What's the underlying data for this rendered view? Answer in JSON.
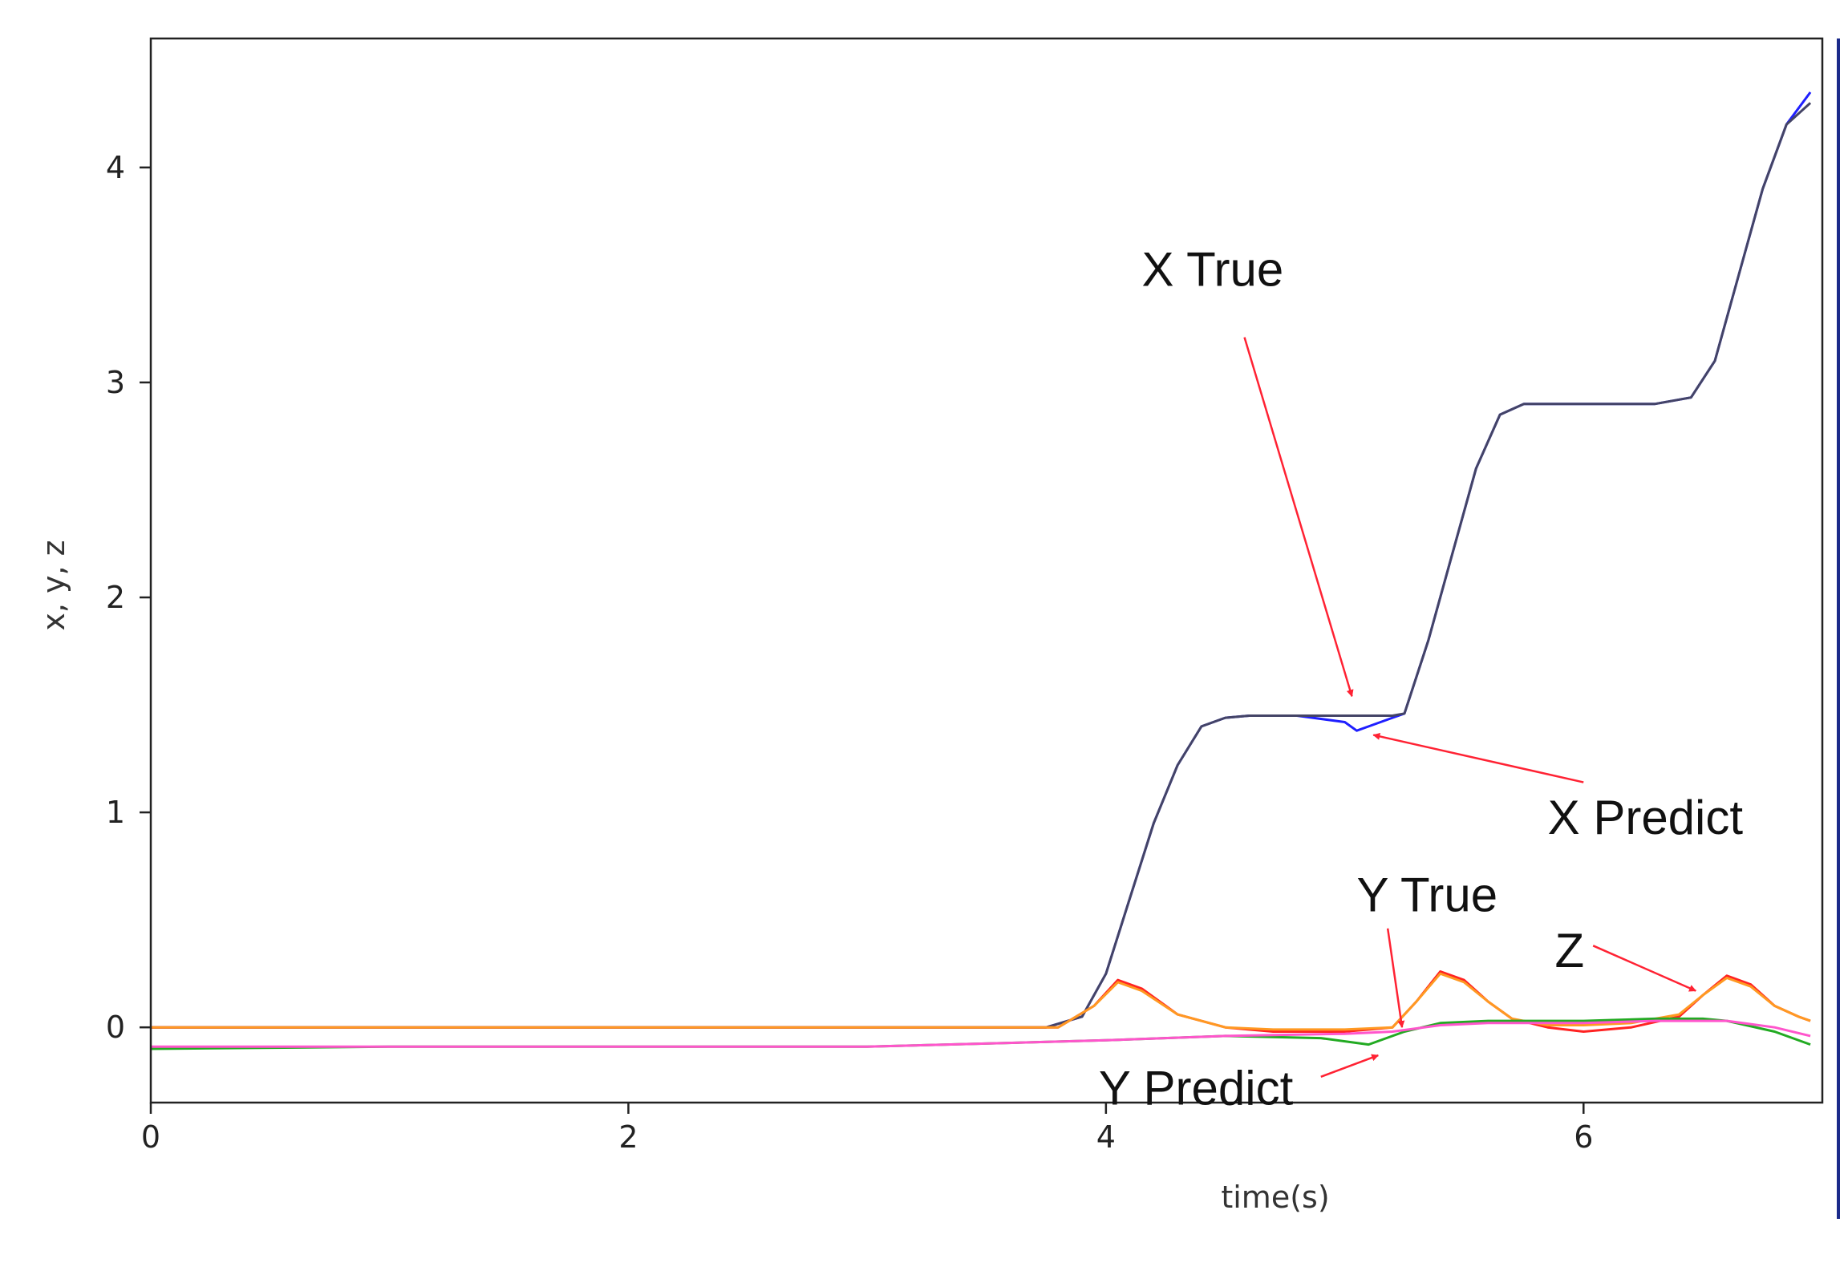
{
  "chart_data": {
    "type": "line",
    "title": "",
    "xlabel": "time(s)",
    "ylabel": "x, y, z",
    "xlim": [
      0,
      7.0
    ],
    "ylim": [
      -0.35,
      4.6
    ],
    "xticks": [
      0,
      2,
      4,
      6
    ],
    "yticks": [
      0,
      1,
      2,
      3,
      4
    ],
    "grid": false,
    "legend": "none",
    "series": [
      {
        "color": "#1f1fff",
        "x": [
          0,
          3.75,
          3.9,
          4.0,
          4.1,
          4.2,
          4.3,
          4.4,
          4.5,
          4.6,
          4.8,
          5.0,
          5.05,
          5.1,
          5.2,
          5.25,
          5.35,
          5.45,
          5.55,
          5.65,
          5.75,
          5.9,
          6.1,
          6.3,
          6.45,
          6.55,
          6.65,
          6.75,
          6.85,
          6.95
        ],
        "y": [
          0.0,
          0.0,
          0.05,
          0.25,
          0.6,
          0.95,
          1.22,
          1.4,
          1.44,
          1.45,
          1.45,
          1.42,
          1.38,
          1.4,
          1.44,
          1.46,
          1.8,
          2.2,
          2.6,
          2.85,
          2.9,
          2.9,
          2.9,
          2.9,
          2.93,
          3.1,
          3.5,
          3.9,
          4.2,
          4.35
        ]
      },
      {
        "color": "#444466",
        "x": [
          0,
          3.75,
          3.9,
          4.0,
          4.1,
          4.2,
          4.3,
          4.4,
          4.5,
          4.6,
          4.8,
          5.0,
          5.1,
          5.2,
          5.25,
          5.35,
          5.45,
          5.55,
          5.65,
          5.75,
          5.9,
          6.1,
          6.3,
          6.45,
          6.55,
          6.65,
          6.75,
          6.85,
          6.95
        ],
        "y": [
          0.0,
          0.0,
          0.05,
          0.25,
          0.6,
          0.95,
          1.22,
          1.4,
          1.44,
          1.45,
          1.45,
          1.45,
          1.45,
          1.45,
          1.46,
          1.8,
          2.2,
          2.6,
          2.85,
          2.9,
          2.9,
          2.9,
          2.9,
          2.93,
          3.1,
          3.5,
          3.9,
          4.2,
          4.3
        ]
      },
      {
        "color": "#ff2222",
        "x": [
          0,
          3.8,
          3.95,
          4.05,
          4.15,
          4.3,
          4.5,
          4.7,
          5.0,
          5.2,
          5.3,
          5.4,
          5.5,
          5.6,
          5.7,
          5.85,
          6.0,
          6.2,
          6.4,
          6.5,
          6.6,
          6.7,
          6.8,
          6.9,
          6.95
        ],
        "y": [
          0.0,
          0.0,
          0.1,
          0.22,
          0.18,
          0.06,
          0.0,
          -0.02,
          -0.02,
          0.0,
          0.12,
          0.26,
          0.22,
          0.12,
          0.04,
          0.0,
          -0.02,
          0.0,
          0.05,
          0.15,
          0.24,
          0.2,
          0.1,
          0.05,
          0.03
        ]
      },
      {
        "color": "#ff9922",
        "x": [
          0,
          3.8,
          3.95,
          4.05,
          4.15,
          4.3,
          4.5,
          4.7,
          5.0,
          5.2,
          5.3,
          5.4,
          5.5,
          5.6,
          5.7,
          5.85,
          6.0,
          6.2,
          6.4,
          6.5,
          6.6,
          6.7,
          6.8,
          6.9,
          6.95
        ],
        "y": [
          0.0,
          0.0,
          0.1,
          0.21,
          0.17,
          0.06,
          0.0,
          -0.01,
          -0.01,
          0.0,
          0.12,
          0.25,
          0.21,
          0.12,
          0.04,
          0.01,
          0.01,
          0.02,
          0.06,
          0.15,
          0.23,
          0.19,
          0.1,
          0.05,
          0.03
        ]
      },
      {
        "color": "#22aa22",
        "x": [
          0,
          1.0,
          2.0,
          3.0,
          4.0,
          4.5,
          4.9,
          5.1,
          5.25,
          5.4,
          5.6,
          5.8,
          6.0,
          6.3,
          6.5,
          6.6,
          6.8,
          6.95
        ],
        "y": [
          -0.1,
          -0.09,
          -0.09,
          -0.09,
          -0.06,
          -0.04,
          -0.05,
          -0.08,
          -0.02,
          0.02,
          0.03,
          0.03,
          0.03,
          0.04,
          0.04,
          0.03,
          -0.02,
          -0.08
        ]
      },
      {
        "color": "#ff55cc",
        "x": [
          0,
          1.0,
          2.0,
          3.0,
          4.0,
          4.5,
          5.0,
          5.2,
          5.4,
          5.6,
          5.8,
          6.0,
          6.3,
          6.6,
          6.8,
          6.95
        ],
        "y": [
          -0.09,
          -0.09,
          -0.09,
          -0.09,
          -0.06,
          -0.04,
          -0.03,
          -0.02,
          0.01,
          0.02,
          0.02,
          0.02,
          0.03,
          0.03,
          0.0,
          -0.04
        ]
      }
    ],
    "annotations": [
      {
        "id": "x-true",
        "text": "X True",
        "x": 4.15,
        "y": 3.45,
        "arrow_from": [
          4.58,
          3.21
        ],
        "arrow_to": [
          5.03,
          1.54
        ]
      },
      {
        "id": "x-predict",
        "text": "X Predict",
        "x": 5.85,
        "y": 0.9,
        "arrow_from": [
          6.0,
          1.14
        ],
        "arrow_to": [
          5.12,
          1.36
        ]
      },
      {
        "id": "y-true",
        "text": "Y True",
        "x": 5.05,
        "y": 0.54,
        "arrow_from": [
          5.18,
          0.46
        ],
        "arrow_to": [
          5.24,
          0.0
        ]
      },
      {
        "id": "z",
        "text": "Z",
        "x": 5.88,
        "y": 0.28,
        "arrow_from": [
          6.04,
          0.38
        ],
        "arrow_to": [
          6.47,
          0.17
        ]
      },
      {
        "id": "y-predict",
        "text": "Y Predict",
        "x": 3.97,
        "y": -0.36,
        "arrow_from": [
          4.9,
          -0.23
        ],
        "arrow_to": [
          5.14,
          -0.13
        ]
      }
    ],
    "annotation_color": "#ff2233"
  }
}
